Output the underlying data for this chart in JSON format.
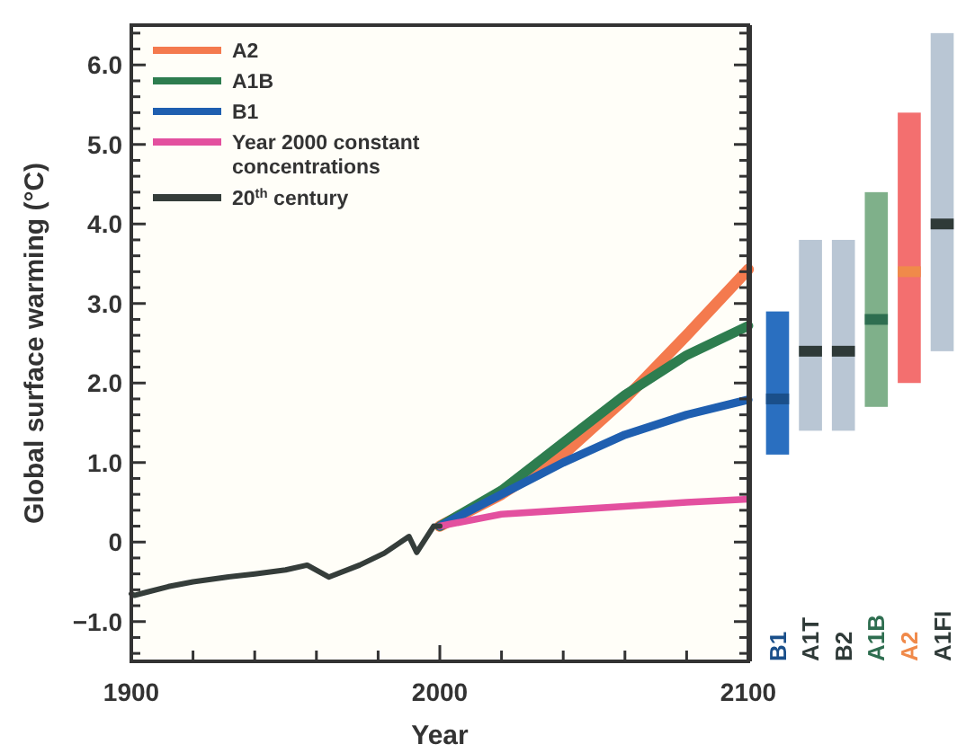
{
  "chart_data": [
    {
      "type": "line",
      "xlabel": "Year",
      "ylabel": "Global surface warming (°C)",
      "xlim": [
        1900,
        2100
      ],
      "ylim": [
        -1.5,
        6.5
      ],
      "xticks": [
        1900,
        {
          "value": 1920,
          "label": null
        },
        {
          "value": 1940,
          "label": null
        },
        {
          "value": 1960,
          "label": null
        },
        {
          "value": 1980,
          "label": null
        },
        2000,
        {
          "value": 2020,
          "label": null
        },
        {
          "value": 2040,
          "label": null
        },
        {
          "value": 2060,
          "label": null
        },
        {
          "value": 2080,
          "label": null
        },
        2100
      ],
      "yticks": [
        {
          "value": -1.4,
          "label": null
        },
        {
          "value": -1.2,
          "label": null
        },
        {
          "value": -1,
          "label": "−1.0"
        },
        {
          "value": -0.8,
          "label": null
        },
        {
          "value": -0.6,
          "label": null
        },
        {
          "value": -0.4,
          "label": null
        },
        {
          "value": -0.2,
          "label": null
        },
        0,
        {
          "value": 0.2,
          "label": null
        },
        {
          "value": 0.4,
          "label": null
        },
        {
          "value": 0.6,
          "label": null
        },
        {
          "value": 0.8,
          "label": null
        },
        {
          "value": 1,
          "label": "1.0"
        },
        {
          "value": 1.2,
          "label": null
        },
        {
          "value": 1.4,
          "label": null
        },
        {
          "value": 1.6,
          "label": null
        },
        {
          "value": 1.8,
          "label": null
        },
        {
          "value": 2,
          "label": "2.0"
        },
        {
          "value": 2.2,
          "label": null
        },
        {
          "value": 2.4,
          "label": null
        },
        {
          "value": 2.6,
          "label": null
        },
        {
          "value": 2.8,
          "label": null
        },
        {
          "value": 3,
          "label": "3.0"
        },
        {
          "value": 3.2,
          "label": null
        },
        {
          "value": 3.4,
          "label": null
        },
        {
          "value": 3.6,
          "label": null
        },
        {
          "value": 3.8,
          "label": null
        },
        {
          "value": 4,
          "label": "4.0"
        },
        {
          "value": 4.2,
          "label": null
        },
        {
          "value": 4.4,
          "label": null
        },
        {
          "value": 4.6,
          "label": null
        },
        {
          "value": 4.8,
          "label": null
        },
        {
          "value": 5,
          "label": "5.0"
        },
        {
          "value": 5.2,
          "label": null
        },
        {
          "value": 5.4,
          "label": null
        },
        {
          "value": 5.6,
          "label": null
        },
        {
          "value": 5.8,
          "label": null
        },
        {
          "value": 6,
          "label": "6.0"
        },
        {
          "value": 6.2,
          "label": null
        },
        {
          "value": 6.4,
          "label": null
        }
      ],
      "legend": "top left",
      "line_style": "solid",
      "marker": "none",
      "grid": false,
      "series": [
        {
          "name": "A2",
          "color": "#f47a4e",
          "x": [
            2000,
            2020,
            2040,
            2060,
            2080,
            2100
          ],
          "values": [
            0.2,
            0.6,
            1.1,
            1.8,
            2.6,
            3.43
          ]
        },
        {
          "name": "A1B",
          "color": "#2e7d4f",
          "x": [
            2000,
            2020,
            2040,
            2060,
            2080,
            2100
          ],
          "values": [
            0.2,
            0.65,
            1.25,
            1.85,
            2.35,
            2.72
          ]
        },
        {
          "name": "B1",
          "color": "#1f5fb0",
          "x": [
            2000,
            2020,
            2040,
            2060,
            2080,
            2100
          ],
          "values": [
            0.2,
            0.6,
            1.0,
            1.35,
            1.6,
            1.79
          ]
        },
        {
          "name": "Year 2000 constant concentrations",
          "color": "#e3509f",
          "x": [
            2000,
            2020,
            2040,
            2060,
            2080,
            2100
          ],
          "values": [
            0.2,
            0.35,
            0.4,
            0.45,
            0.5,
            0.54
          ]
        },
        {
          "name": "20$^{th}$ century",
          "color": "#353d3a",
          "x": [
            1900,
            1901,
            1905,
            1912,
            1920,
            1931,
            1940,
            1950,
            1957,
            1964,
            1974,
            1982,
            1990,
            1992.5,
            1998,
            2000
          ],
          "values": [
            -0.65,
            -0.67,
            -0.63,
            -0.56,
            -0.5,
            -0.44,
            -0.4,
            -0.35,
            -0.29,
            -0.44,
            -0.29,
            -0.14,
            0.07,
            -0.13,
            0.2,
            0.2
          ]
        }
      ]
    },
    {
      "type": "bar",
      "categories": [
        "B1",
        "A1T",
        "B2",
        "A1B",
        "A2",
        "A1FI"
      ],
      "ylim": [
        -1.5,
        6.5
      ],
      "tick_labels": "x",
      "series": [
        {
          "type": "bar",
          "base": [
            1.1,
            1.4,
            1.4,
            1.7,
            2.0,
            2.4
          ],
          "colors": [
            "#2a6fc0",
            "#b9c6d4",
            "#b9c6d4",
            "#7fb08a",
            "#f36f6f",
            "#b9c6d4"
          ],
          "values": [
            1.8,
            2.4,
            2.4,
            2.7,
            3.4,
            4.0
          ]
        },
        {
          "type": "scatter",
          "marker": "square",
          "x": [
            "B1",
            "A1T",
            "B2",
            "A1B",
            "A2",
            "A1FI"
          ],
          "colors": [
            "#1a4f8a",
            "#2f3a38",
            "#2f3a38",
            "#2e6e50",
            "#f08a4a",
            "#2f3a38"
          ],
          "values": [
            1.8,
            2.4,
            2.4,
            2.8,
            3.4,
            4.0
          ]
        }
      ]
    }
  ]
}
